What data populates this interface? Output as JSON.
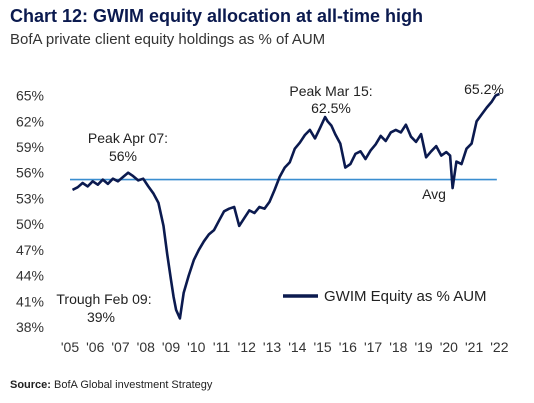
{
  "title": "Chart 12: GWIM equity allocation at all-time high",
  "subtitle": "BofA private client equity holdings as % of AUM",
  "source_label": "Source:",
  "source_text": "BofA Global investment Strategy",
  "chart_data": {
    "type": "line",
    "ylim": [
      38,
      66
    ],
    "xlim": [
      2005,
      2022.5
    ],
    "yticks": [
      "65%",
      "62%",
      "59%",
      "56%",
      "53%",
      "50%",
      "47%",
      "44%",
      "41%",
      "38%"
    ],
    "ytick_values": [
      65,
      62,
      59,
      56,
      53,
      50,
      47,
      44,
      41,
      38
    ],
    "xticks": [
      "'05",
      "'06",
      "'07",
      "'08",
      "'09",
      "'10",
      "'11",
      "'12",
      "'13",
      "'14",
      "'15",
      "'16",
      "'17",
      "'18",
      "'19",
      "'20",
      "'21",
      "'22"
    ],
    "xtick_values": [
      2005,
      2006,
      2007,
      2008,
      2009,
      2010,
      2011,
      2012,
      2013,
      2014,
      2015,
      2016,
      2017,
      2018,
      2019,
      2020,
      2021,
      2022
    ],
    "grid": false,
    "legend_position": "bottom-right",
    "average": 55.2,
    "avg_label": "Avg",
    "series": [
      {
        "name": "GWIM Equity as % AUM",
        "color": "#0b1a4f",
        "x": [
          2005.1,
          2005.3,
          2005.5,
          2005.7,
          2005.9,
          2006.1,
          2006.3,
          2006.5,
          2006.7,
          2006.9,
          2007.1,
          2007.3,
          2007.5,
          2007.7,
          2007.9,
          2008.1,
          2008.3,
          2008.5,
          2008.7,
          2008.85,
          2009.0,
          2009.1,
          2009.2,
          2009.35,
          2009.5,
          2009.7,
          2009.9,
          2010.1,
          2010.3,
          2010.5,
          2010.7,
          2010.9,
          2011.1,
          2011.3,
          2011.5,
          2011.7,
          2011.9,
          2012.1,
          2012.3,
          2012.5,
          2012.7,
          2012.9,
          2013.1,
          2013.3,
          2013.5,
          2013.7,
          2013.9,
          2014.1,
          2014.3,
          2014.5,
          2014.7,
          2014.9,
          2015.1,
          2015.2,
          2015.35,
          2015.5,
          2015.7,
          2015.9,
          2016.1,
          2016.3,
          2016.5,
          2016.7,
          2016.9,
          2017.1,
          2017.3,
          2017.5,
          2017.7,
          2017.9,
          2018.1,
          2018.3,
          2018.5,
          2018.7,
          2018.9,
          2019.1,
          2019.3,
          2019.5,
          2019.7,
          2019.9,
          2020.05,
          2020.15,
          2020.3,
          2020.5,
          2020.7,
          2020.9,
          2021.1,
          2021.3,
          2021.5,
          2021.7,
          2021.85,
          2022.0
        ],
        "y": [
          54.0,
          54.3,
          54.8,
          54.4,
          55.0,
          54.6,
          55.2,
          54.7,
          55.3,
          55.0,
          55.5,
          56.0,
          55.6,
          55.1,
          55.3,
          54.4,
          53.6,
          52.5,
          49.8,
          46.5,
          43.5,
          41.5,
          40.0,
          39.0,
          42.0,
          44.0,
          45.8,
          47.0,
          48.0,
          48.8,
          49.3,
          50.4,
          51.5,
          51.8,
          52.0,
          49.8,
          50.7,
          51.6,
          51.3,
          52.0,
          51.8,
          52.6,
          54.0,
          55.5,
          56.6,
          57.2,
          58.8,
          59.5,
          60.4,
          61.0,
          60.0,
          61.2,
          62.5,
          62.0,
          61.5,
          60.5,
          59.4,
          56.6,
          57.0,
          58.2,
          58.5,
          57.6,
          58.6,
          59.3,
          60.3,
          59.7,
          60.7,
          61.0,
          60.7,
          61.6,
          60.2,
          59.6,
          60.5,
          57.8,
          58.5,
          59.1,
          58.0,
          58.4,
          58.0,
          54.2,
          57.3,
          57.0,
          58.8,
          59.4,
          62.0,
          62.8,
          63.6,
          64.3,
          65.0,
          65.2
        ]
      }
    ],
    "annotations": [
      {
        "text": "Peak Apr 07:",
        "x": 2007.3,
        "y": 56.0
      },
      {
        "text": "56%",
        "x": 2007.3,
        "y": 56.0
      },
      {
        "text": "Peak Mar 15:",
        "x": 2015.2,
        "y": 62.5
      },
      {
        "text": "62.5%",
        "x": 2015.2,
        "y": 62.5
      },
      {
        "text": "65.2%",
        "x": 2022.0,
        "y": 65.2
      },
      {
        "text": "Trough Feb 09:",
        "x": 2009.35,
        "y": 39.0
      },
      {
        "text": "39%",
        "x": 2009.35,
        "y": 39.0
      }
    ]
  }
}
